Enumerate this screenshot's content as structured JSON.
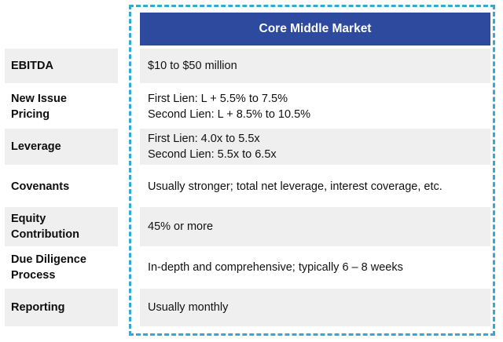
{
  "header": {
    "title": "Core Middle Market"
  },
  "rows": [
    {
      "label": [
        "EBITDA"
      ],
      "value": [
        "$10 to $50 million"
      ]
    },
    {
      "label": [
        "New Issue",
        "Pricing"
      ],
      "value": [
        "First Lien: L + 5.5% to 7.5%",
        "Second Lien: L + 8.5% to 10.5%"
      ]
    },
    {
      "label": [
        "Leverage"
      ],
      "value": [
        "First Lien: 4.0x to 5.5x",
        "Second Lien: 5.5x to 6.5x"
      ]
    },
    {
      "label": [
        "Covenants"
      ],
      "value": [
        "Usually stronger; total net leverage, interest coverage, etc."
      ]
    },
    {
      "label": [
        "Equity",
        "Contribution"
      ],
      "value": [
        "45% or more"
      ]
    },
    {
      "label": [
        "Due Diligence",
        "Process"
      ],
      "value": [
        "In-depth and comprehensive; typically 6 – 8 weeks"
      ]
    },
    {
      "label": [
        "Reporting"
      ],
      "value": [
        "Usually monthly"
      ]
    }
  ],
  "colors": {
    "header_bg": "#2e4a9e",
    "frame_dashed": "#35a9d6",
    "row_shade": "#efefef"
  }
}
